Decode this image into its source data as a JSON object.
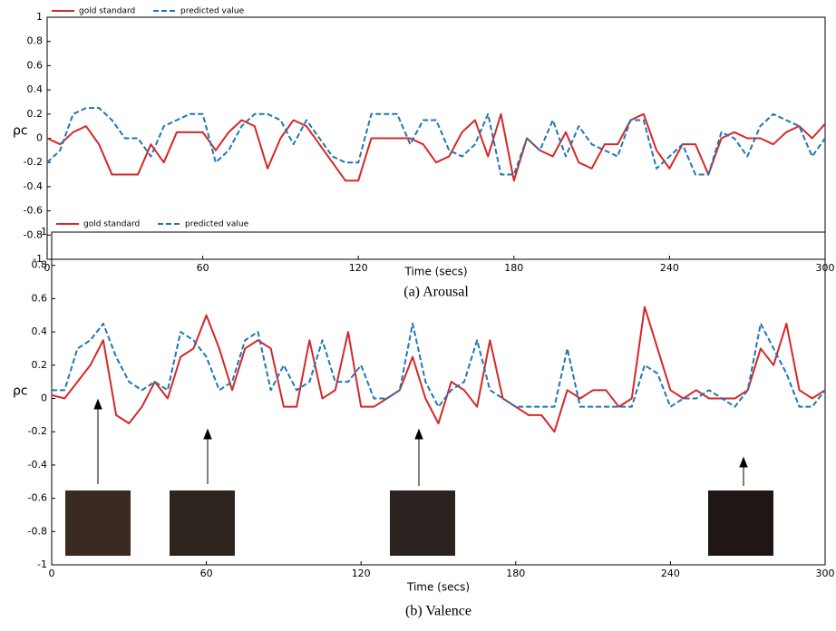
{
  "chart_data": [
    {
      "type": "line",
      "title": "(a) Arousal",
      "x_label": "Time (secs)",
      "y_label": "ρc",
      "x": [
        0,
        5,
        10,
        15,
        20,
        25,
        30,
        35,
        40,
        45,
        50,
        55,
        60,
        65,
        70,
        75,
        80,
        85,
        90,
        95,
        100,
        105,
        110,
        115,
        120,
        125,
        130,
        135,
        140,
        145,
        150,
        155,
        160,
        165,
        170,
        175,
        180,
        185,
        190,
        195,
        200,
        205,
        210,
        215,
        220,
        225,
        230,
        235,
        240,
        245,
        250,
        255,
        260,
        265,
        270,
        275,
        280,
        285,
        290,
        295,
        300
      ],
      "series": [
        {
          "name": "gold standard",
          "color": "#d62728",
          "style": "solid",
          "values": [
            0,
            -0.05,
            0.05,
            0.1,
            -0.05,
            -0.3,
            -0.3,
            -0.3,
            -0.05,
            -0.2,
            0.05,
            0.05,
            0.05,
            -0.1,
            0.05,
            0.15,
            0.1,
            -0.25,
            0,
            0.15,
            0.1,
            -0.05,
            -0.2,
            -0.35,
            -0.35,
            0,
            0,
            0,
            0,
            -0.05,
            -0.2,
            -0.15,
            0.05,
            0.15,
            -0.15,
            0.2,
            -0.35,
            0,
            -0.1,
            -0.15,
            0.05,
            -0.2,
            -0.25,
            -0.05,
            -0.05,
            0.15,
            0.2,
            -0.1,
            -0.25,
            -0.05,
            -0.05,
            -0.3,
            0,
            0.05,
            0,
            0,
            -0.05,
            0.05,
            0.1,
            0,
            0.12
          ]
        },
        {
          "name": "predicted value",
          "color": "#1f77b4",
          "style": "dashed",
          "values": [
            -0.2,
            -0.1,
            0.2,
            0.25,
            0.25,
            0.15,
            0,
            0,
            -0.15,
            0.1,
            0.15,
            0.2,
            0.2,
            -0.2,
            -0.1,
            0.1,
            0.2,
            0.2,
            0.15,
            -0.05,
            0.15,
            0,
            -0.15,
            -0.2,
            -0.2,
            0.2,
            0.2,
            0.2,
            -0.05,
            0.15,
            0.15,
            -0.1,
            -0.15,
            -0.05,
            0.2,
            -0.3,
            -0.3,
            0,
            -0.1,
            0.15,
            -0.15,
            0.1,
            -0.05,
            -0.1,
            -0.15,
            0.15,
            0.15,
            -0.25,
            -0.15,
            -0.05,
            -0.3,
            -0.3,
            0.05,
            0,
            -0.15,
            0.1,
            0.2,
            0.15,
            0.1,
            -0.15,
            0
          ]
        }
      ],
      "xlim": [
        0,
        300
      ],
      "xticks": [
        0,
        60,
        120,
        180,
        240,
        300
      ],
      "ylim": [
        -1,
        1
      ],
      "yticks": [
        -1,
        -0.8,
        -0.6,
        -0.4,
        -0.2,
        0,
        0.2,
        0.4,
        0.6,
        0.8,
        1
      ],
      "grid": false,
      "legend": "top-left"
    },
    {
      "type": "line",
      "title": "(b) Valence",
      "x_label": "Time (secs)",
      "y_label": "ρc",
      "x": [
        0,
        5,
        10,
        15,
        20,
        25,
        30,
        35,
        40,
        45,
        50,
        55,
        60,
        65,
        70,
        75,
        80,
        85,
        90,
        95,
        100,
        105,
        110,
        115,
        120,
        125,
        130,
        135,
        140,
        145,
        150,
        155,
        160,
        165,
        170,
        175,
        180,
        185,
        190,
        195,
        200,
        205,
        210,
        215,
        220,
        225,
        230,
        235,
        240,
        245,
        250,
        255,
        260,
        265,
        270,
        275,
        280,
        285,
        290,
        295,
        300
      ],
      "series": [
        {
          "name": "gold standard",
          "color": "#d62728",
          "style": "solid",
          "values": [
            0.02,
            0,
            0.1,
            0.2,
            0.35,
            -0.1,
            -0.15,
            -0.05,
            0.1,
            0,
            0.25,
            0.3,
            0.5,
            0.3,
            0.05,
            0.3,
            0.35,
            0.3,
            -0.05,
            -0.05,
            0.35,
            0,
            0.05,
            0.4,
            -0.05,
            -0.05,
            0,
            0.05,
            0.25,
            0,
            -0.15,
            0.1,
            0.05,
            -0.05,
            0.35,
            0,
            -0.05,
            -0.1,
            -0.1,
            -0.2,
            0.05,
            0,
            0.05,
            0.05,
            -0.05,
            0,
            0.55,
            0.3,
            0.05,
            0,
            0.05,
            0,
            0,
            0,
            0.05,
            0.3,
            0.2,
            0.45,
            0.05,
            0,
            0.05
          ]
        },
        {
          "name": "predicted value",
          "color": "#1f77b4",
          "style": "dashed",
          "values": [
            0.05,
            0.05,
            0.3,
            0.35,
            0.45,
            0.25,
            0.1,
            0.05,
            0.1,
            0.05,
            0.4,
            0.35,
            0.25,
            0.05,
            0.1,
            0.35,
            0.4,
            0.05,
            0.2,
            0.05,
            0.1,
            0.35,
            0.1,
            0.1,
            0.2,
            0,
            0,
            0.05,
            0.45,
            0.1,
            -0.05,
            0.05,
            0.1,
            0.35,
            0.05,
            0,
            -0.05,
            -0.05,
            -0.05,
            -0.05,
            0.3,
            -0.05,
            -0.05,
            -0.05,
            -0.05,
            -0.05,
            0.2,
            0.15,
            -0.05,
            0,
            0,
            0.05,
            0,
            -0.05,
            0.05,
            0.45,
            0.3,
            0.15,
            -0.05,
            -0.05,
            0.05
          ]
        }
      ],
      "xlim": [
        0,
        300
      ],
      "xticks": [
        0,
        60,
        120,
        180,
        240,
        300
      ],
      "ylim": [
        -1,
        1
      ],
      "yticks": [
        -1,
        -0.8,
        -0.6,
        -0.4,
        -0.2,
        0,
        0.2,
        0.4,
        0.6,
        0.8,
        1
      ],
      "grid": false,
      "legend": "top-left"
    }
  ]
}
